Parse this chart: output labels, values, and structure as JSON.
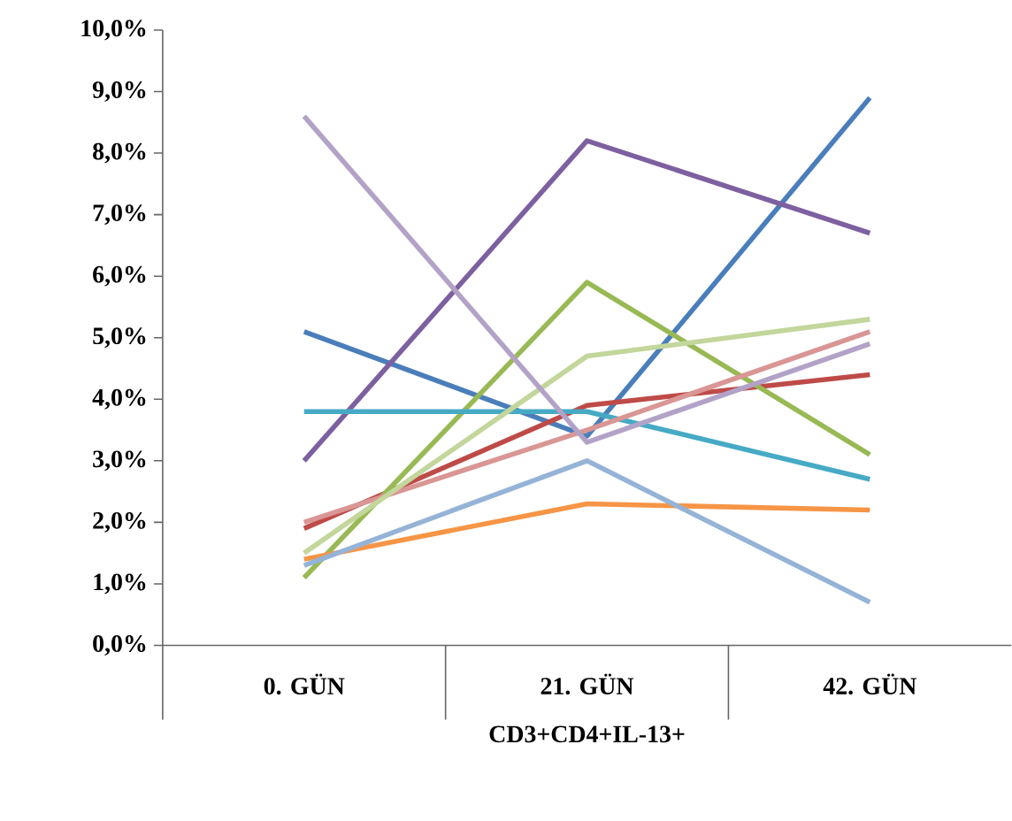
{
  "chart_data": {
    "type": "line",
    "xlabel": "CD3+CD4+IL-13+",
    "categories": [
      "0. GÜN",
      "21. GÜN",
      "42. GÜN"
    ],
    "ylim": [
      0,
      10
    ],
    "yticks": [
      {
        "value": 0,
        "label": "0,0%"
      },
      {
        "value": 1,
        "label": "1,0%"
      },
      {
        "value": 2,
        "label": "2,0%"
      },
      {
        "value": 3,
        "label": "3,0%"
      },
      {
        "value": 4,
        "label": "4,0%"
      },
      {
        "value": 5,
        "label": "5,0%"
      },
      {
        "value": 6,
        "label": "6,0%"
      },
      {
        "value": 7,
        "label": "7,0%"
      },
      {
        "value": 8,
        "label": "8,0%"
      },
      {
        "value": 9,
        "label": "9,0%"
      },
      {
        "value": 10,
        "label": "10,0%"
      }
    ],
    "grid": false,
    "marker": "none",
    "line_style": "solid",
    "series": [
      {
        "color": "#4a7ebb",
        "values": [
          5.1,
          3.4,
          8.9
        ]
      },
      {
        "color": "#be4b48",
        "values": [
          1.9,
          3.9,
          4.4
        ]
      },
      {
        "color": "#98b954",
        "values": [
          1.1,
          5.9,
          3.1
        ]
      },
      {
        "color": "#7d60a0",
        "values": [
          3.0,
          8.2,
          6.7
        ]
      },
      {
        "color": "#46aac5",
        "values": [
          3.8,
          3.8,
          2.7
        ]
      },
      {
        "color": "#f69546",
        "values": [
          1.4,
          2.3,
          2.2
        ]
      },
      {
        "color": "#95b3d7",
        "values": [
          1.3,
          3.0,
          0.7
        ]
      },
      {
        "color": "#d99694",
        "values": [
          2.0,
          3.5,
          5.1
        ]
      },
      {
        "color": "#c3d69b",
        "values": [
          1.5,
          4.7,
          5.3
        ]
      },
      {
        "color": "#b3a2c7",
        "values": [
          8.6,
          3.3,
          4.9
        ]
      }
    ]
  }
}
